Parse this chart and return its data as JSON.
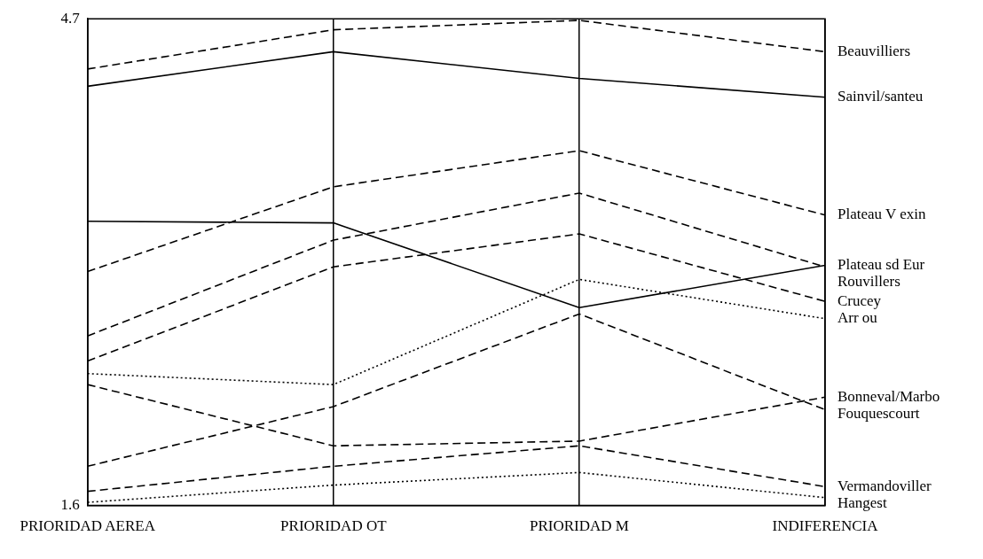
{
  "chart_data": {
    "type": "line",
    "categories": [
      "PRIORIDAD AEREA",
      "PRIORIDAD OT",
      "PRIORIDAD M",
      "INDIFERENCIA"
    ],
    "ylim": [
      1.6,
      4.7
    ],
    "yticks": [
      1.6,
      4.7
    ],
    "grid": "x",
    "legend": false,
    "marker": "none",
    "series": [
      {
        "name": "Beauvilliers",
        "color": "#000000",
        "line_style": "dashed",
        "values": [
          4.38,
          4.63,
          4.69,
          4.49
        ]
      },
      {
        "name": "Sainvil/santeu",
        "color": "#000000",
        "line_style": "solid",
        "values": [
          4.27,
          4.49,
          4.32,
          4.2
        ]
      },
      {
        "name": "Plateau V exin",
        "color": "#000000",
        "line_style": "dashed",
        "values": [
          3.09,
          3.63,
          3.86,
          3.45
        ]
      },
      {
        "name": "Rouvillers",
        "color": "#000000",
        "line_style": "dashed",
        "values": [
          2.68,
          3.29,
          3.59,
          3.12
        ]
      },
      {
        "name": "Plateau sd Eur",
        "color": "#000000",
        "line_style": "solid",
        "values": [
          3.41,
          3.4,
          2.86,
          3.13
        ]
      },
      {
        "name": "Crucey",
        "color": "#000000",
        "line_style": "dashed",
        "values": [
          2.52,
          3.12,
          3.33,
          2.9
        ]
      },
      {
        "name": "Arr ou",
        "color": "#000000",
        "line_style": "dotted",
        "values": [
          2.44,
          2.37,
          3.04,
          2.79
        ]
      },
      {
        "name": "Bonneval/Marbo",
        "color": "#000000",
        "line_style": "dashed",
        "values": [
          2.37,
          1.98,
          2.01,
          2.29
        ]
      },
      {
        "name": "Fouquescourt",
        "color": "#000000",
        "line_style": "dashed",
        "values": [
          1.85,
          2.23,
          2.82,
          2.21
        ]
      },
      {
        "name": "Vermandoviller",
        "color": "#000000",
        "line_style": "dashed",
        "values": [
          1.69,
          1.85,
          1.98,
          1.72
        ]
      },
      {
        "name": "Hangest",
        "color": "#000000",
        "line_style": "dotted",
        "values": [
          1.62,
          1.73,
          1.81,
          1.65
        ]
      }
    ]
  }
}
